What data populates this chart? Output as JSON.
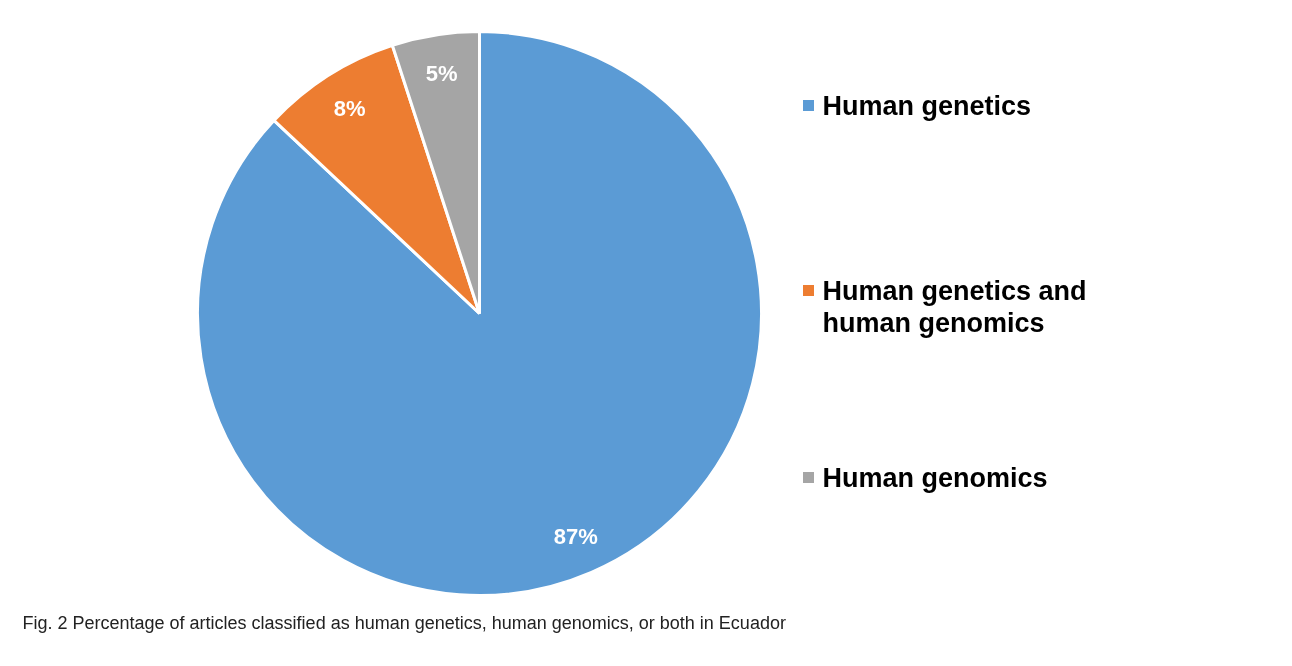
{
  "chart_data": {
    "type": "pie",
    "categories": [
      "Human genetics",
      "Human genetics and human genomics",
      "Human genomics"
    ],
    "values": [
      87,
      8,
      5
    ],
    "colors": [
      "#5b9bd5",
      "#ed7d31",
      "#a5a5a5"
    ],
    "value_labels": [
      "87%",
      "8%",
      "5%"
    ],
    "legend": "right",
    "annotations": [
      "Fig. 2 Percentage of articles classified as human genetics, human genomics, or both in Ecuador"
    ]
  }
}
